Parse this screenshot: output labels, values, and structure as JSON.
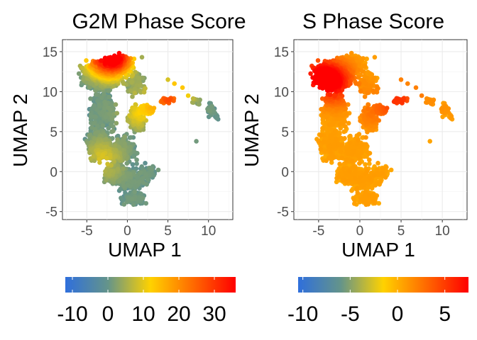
{
  "chart_data": [
    {
      "type": "scatter",
      "title": "G2M Phase Score",
      "xlabel": "UMAP 1",
      "ylabel": "UMAP 2",
      "xlim": [
        -8,
        13
      ],
      "ylim": [
        -6,
        16.5
      ],
      "x_ticks": [
        -5,
        0,
        5,
        10
      ],
      "y_ticks": [
        -5,
        0,
        5,
        10,
        15
      ],
      "grid": true,
      "color_scale": {
        "position": "bottom",
        "range": [
          -12,
          36
        ],
        "ticks": [
          -10,
          0,
          10,
          20,
          30
        ],
        "colors": [
          "#2f6fdc",
          "#64948a",
          "#ffd200",
          "#ff6a00",
          "#ff0000"
        ]
      },
      "hotspots": [
        {
          "x": -1.5,
          "y": 14.3,
          "value": 32
        },
        {
          "x": -3.5,
          "y": 14.6,
          "value": 18
        },
        {
          "x": 5.2,
          "y": 9.2,
          "value": 26
        },
        {
          "x": 1.5,
          "y": 7.6,
          "value": 10
        },
        {
          "x": -3.0,
          "y": 1.5,
          "value": 8
        },
        {
          "x": 8.5,
          "y": 9.0,
          "value": 0
        }
      ]
    },
    {
      "type": "scatter",
      "title": "S Phase Score",
      "xlabel": "UMAP 1",
      "ylabel": "UMAP 2",
      "xlim": [
        -8,
        13
      ],
      "ylim": [
        -6,
        16.5
      ],
      "x_ticks": [
        -5,
        0,
        5,
        10
      ],
      "y_ticks": [
        -5,
        0,
        5,
        10,
        15
      ],
      "grid": true,
      "color_scale": {
        "position": "bottom",
        "range": [
          -10.5,
          7.5
        ],
        "ticks": [
          -10,
          -5,
          0,
          5
        ],
        "colors": [
          "#2f6fdc",
          "#64948a",
          "#ffd200",
          "#ff6a00",
          "#ff0000"
        ]
      },
      "hotspots": [
        {
          "x": -5.0,
          "y": 12.0,
          "value": 6.5
        },
        {
          "x": -3.0,
          "y": 11.0,
          "value": 6
        },
        {
          "x": 4.8,
          "y": 8.8,
          "value": 5
        },
        {
          "x": 1.5,
          "y": 7.5,
          "value": 2
        },
        {
          "x": 2.0,
          "y": 0.0,
          "value": 0.5
        },
        {
          "x": 9.5,
          "y": 8.2,
          "value": 1
        }
      ]
    }
  ]
}
